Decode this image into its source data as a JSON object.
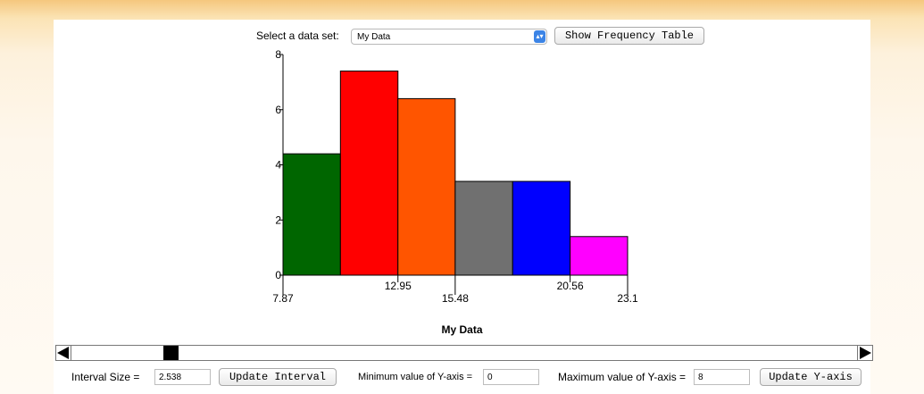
{
  "header": {
    "dataset_label": "Select a data set:",
    "dataset_selected": "My Data",
    "show_freq_label": "Show Frequency Table"
  },
  "chart_data": {
    "type": "bar",
    "title": "My Data",
    "bins": [
      {
        "start": 7.87,
        "end": 10.408,
        "value": 4.4,
        "color": "#006600"
      },
      {
        "start": 10.408,
        "end": 12.95,
        "value": 7.4,
        "color": "#ff0000"
      },
      {
        "start": 12.95,
        "end": 15.48,
        "value": 6.4,
        "color": "#ff5500"
      },
      {
        "start": 15.48,
        "end": 18.02,
        "value": 3.4,
        "color": "#707070"
      },
      {
        "start": 18.02,
        "end": 20.56,
        "value": 3.4,
        "color": "#0000ff"
      },
      {
        "start": 20.56,
        "end": 23.1,
        "value": 1.4,
        "color": "#ff00ff"
      }
    ],
    "x_tick_labels": [
      {
        "value": 7.87,
        "label": "7.87"
      },
      {
        "value": 12.95,
        "label": "12.95"
      },
      {
        "value": 15.48,
        "label": "15.48"
      },
      {
        "value": 20.56,
        "label": "20.56"
      },
      {
        "value": 23.1,
        "label": "23.1"
      }
    ],
    "y_ticks": [
      {
        "value": 0,
        "label": "0"
      },
      {
        "value": 2,
        "label": "2"
      },
      {
        "value": 4,
        "label": "4"
      },
      {
        "value": 6,
        "label": "6"
      },
      {
        "value": 8,
        "label": "8"
      }
    ],
    "xlim": [
      7.87,
      23.1
    ],
    "ylim": [
      0,
      8
    ]
  },
  "slider": {
    "value": 0.12
  },
  "controls": {
    "interval_label": "Interval Size =",
    "interval_value": "2.538",
    "update_interval_label": "Update Interval",
    "min_y_label": "Minimum value of Y-axis =",
    "min_y_value": "0",
    "max_y_label": "Maximum value of Y-axis =",
    "max_y_value": "8",
    "update_y_label": "Update Y-axis"
  }
}
